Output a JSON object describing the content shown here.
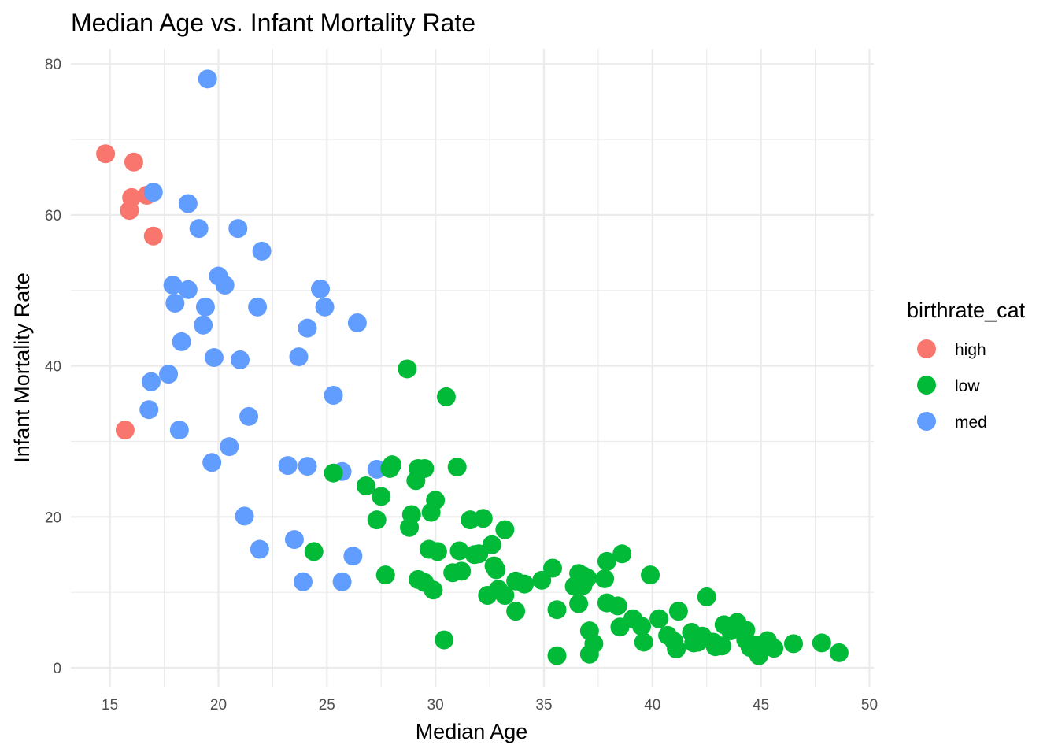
{
  "chart_data": {
    "type": "scatter",
    "title": "Median Age vs. Infant Mortality Rate",
    "xlabel": "Median Age",
    "ylabel": "Infant Mortality Rate",
    "xlim": [
      13.2,
      50.2
    ],
    "ylim": [
      -2.5,
      82
    ],
    "x_ticks": [
      15,
      20,
      25,
      30,
      35,
      40,
      45,
      50
    ],
    "y_ticks": [
      0,
      20,
      40,
      60,
      80
    ],
    "grid": true,
    "legend": {
      "title": "birthrate_cat",
      "placement": "right",
      "entries": [
        {
          "label": "high",
          "color": "#F8766D"
        },
        {
          "label": "low",
          "color": "#00BA38"
        },
        {
          "label": "med",
          "color": "#619CFF"
        }
      ]
    },
    "series": [
      {
        "name": "high",
        "color": "#F8766D",
        "points": [
          [
            14.8,
            68.1
          ],
          [
            16.1,
            67.0
          ],
          [
            16.0,
            62.3
          ],
          [
            16.7,
            62.6
          ],
          [
            15.9,
            60.6
          ],
          [
            17.0,
            57.2
          ],
          [
            15.7,
            31.5
          ]
        ]
      },
      {
        "name": "med",
        "color": "#619CFF",
        "points": [
          [
            19.5,
            78.0
          ],
          [
            17.0,
            63.0
          ],
          [
            18.6,
            61.5
          ],
          [
            19.1,
            58.2
          ],
          [
            20.9,
            58.2
          ],
          [
            22.0,
            55.2
          ],
          [
            17.9,
            50.7
          ],
          [
            18.6,
            50.1
          ],
          [
            20.0,
            51.9
          ],
          [
            20.3,
            50.7
          ],
          [
            18.0,
            48.3
          ],
          [
            19.4,
            47.8
          ],
          [
            21.8,
            47.8
          ],
          [
            24.7,
            50.2
          ],
          [
            24.9,
            47.8
          ],
          [
            19.3,
            45.4
          ],
          [
            24.1,
            45.0
          ],
          [
            26.4,
            45.7
          ],
          [
            18.3,
            43.2
          ],
          [
            19.8,
            41.1
          ],
          [
            21.0,
            40.8
          ],
          [
            23.7,
            41.2
          ],
          [
            17.7,
            38.9
          ],
          [
            16.9,
            37.9
          ],
          [
            25.3,
            36.1
          ],
          [
            16.8,
            34.2
          ],
          [
            21.4,
            33.3
          ],
          [
            18.2,
            31.5
          ],
          [
            20.5,
            29.3
          ],
          [
            19.7,
            27.2
          ],
          [
            23.2,
            26.8
          ],
          [
            24.1,
            26.7
          ],
          [
            25.7,
            26.0
          ],
          [
            27.3,
            26.3
          ],
          [
            21.2,
            20.1
          ],
          [
            21.9,
            15.7
          ],
          [
            23.5,
            17.0
          ],
          [
            26.2,
            14.8
          ],
          [
            23.9,
            11.4
          ],
          [
            25.7,
            11.4
          ]
        ]
      },
      {
        "name": "low",
        "color": "#00BA38",
        "points": [
          [
            28.7,
            39.6
          ],
          [
            30.5,
            35.9
          ],
          [
            31.0,
            26.6
          ],
          [
            25.3,
            25.8
          ],
          [
            26.8,
            24.1
          ],
          [
            27.9,
            26.4
          ],
          [
            28.0,
            26.9
          ],
          [
            29.2,
            26.4
          ],
          [
            29.5,
            26.4
          ],
          [
            29.1,
            24.8
          ],
          [
            27.5,
            22.7
          ],
          [
            30.0,
            22.2
          ],
          [
            28.9,
            20.3
          ],
          [
            27.3,
            19.6
          ],
          [
            29.8,
            20.6
          ],
          [
            28.8,
            18.6
          ],
          [
            31.6,
            19.6
          ],
          [
            32.2,
            19.8
          ],
          [
            33.2,
            18.3
          ],
          [
            32.6,
            16.3
          ],
          [
            29.7,
            15.7
          ],
          [
            30.1,
            15.4
          ],
          [
            31.1,
            15.5
          ],
          [
            31.8,
            15.0
          ],
          [
            32.0,
            15.1
          ],
          [
            24.4,
            15.4
          ],
          [
            27.7,
            12.3
          ],
          [
            29.2,
            11.7
          ],
          [
            29.5,
            11.3
          ],
          [
            29.9,
            10.3
          ],
          [
            30.8,
            12.6
          ],
          [
            31.2,
            12.8
          ],
          [
            32.7,
            13.5
          ],
          [
            32.8,
            13.0
          ],
          [
            32.9,
            10.4
          ],
          [
            33.2,
            9.6
          ],
          [
            32.4,
            9.6
          ],
          [
            33.7,
            11.5
          ],
          [
            34.1,
            11.1
          ],
          [
            34.9,
            11.6
          ],
          [
            35.4,
            13.2
          ],
          [
            33.7,
            7.5
          ],
          [
            35.6,
            7.7
          ],
          [
            36.4,
            10.8
          ],
          [
            36.6,
            12.5
          ],
          [
            36.8,
            12.2
          ],
          [
            37.0,
            11.9
          ],
          [
            36.8,
            10.9
          ],
          [
            37.8,
            11.8
          ],
          [
            37.9,
            14.1
          ],
          [
            38.6,
            15.1
          ],
          [
            39.9,
            12.3
          ],
          [
            36.6,
            8.5
          ],
          [
            37.9,
            8.6
          ],
          [
            38.4,
            8.2
          ],
          [
            38.5,
            5.4
          ],
          [
            39.1,
            6.5
          ],
          [
            39.5,
            5.5
          ],
          [
            39.6,
            3.4
          ],
          [
            40.3,
            6.5
          ],
          [
            40.7,
            4.3
          ],
          [
            41.2,
            7.5
          ],
          [
            41.0,
            3.5
          ],
          [
            41.1,
            2.5
          ],
          [
            41.8,
            4.7
          ],
          [
            41.9,
            3.3
          ],
          [
            42.1,
            3.4
          ],
          [
            42.3,
            4.2
          ],
          [
            42.5,
            9.4
          ],
          [
            42.8,
            3.4
          ],
          [
            42.9,
            2.8
          ],
          [
            43.2,
            2.9
          ],
          [
            43.3,
            5.7
          ],
          [
            43.6,
            4.9
          ],
          [
            43.7,
            5.4
          ],
          [
            43.9,
            6.0
          ],
          [
            44.3,
            5.0
          ],
          [
            44.3,
            3.7
          ],
          [
            44.5,
            2.7
          ],
          [
            44.9,
            1.6
          ],
          [
            44.8,
            3.0
          ],
          [
            45.3,
            3.6
          ],
          [
            45.6,
            2.6
          ],
          [
            46.5,
            3.2
          ],
          [
            47.8,
            3.3
          ],
          [
            48.6,
            2.0
          ],
          [
            37.1,
            4.9
          ],
          [
            37.3,
            3.2
          ],
          [
            37.1,
            1.8
          ],
          [
            35.6,
            1.6
          ],
          [
            30.4,
            3.7
          ]
        ]
      }
    ]
  }
}
